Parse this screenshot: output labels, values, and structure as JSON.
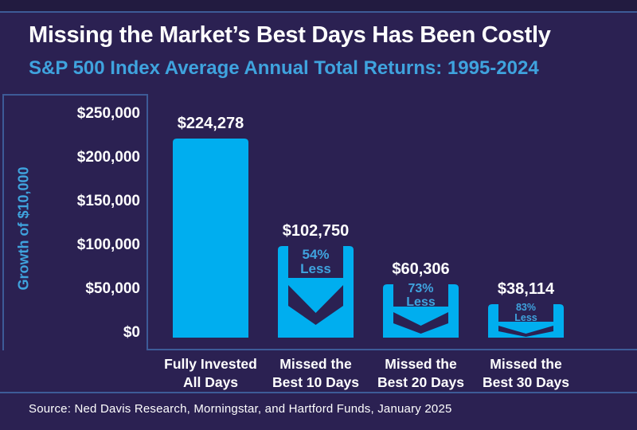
{
  "header": {
    "title": "Missing the Market’s Best Days Has Been Costly",
    "subtitle": "S&P 500 Index Average Annual Total Returns: 1995-2024"
  },
  "footer": {
    "source": "Source: Ned Davis Research, Morningstar, and Hartford Funds, January 2025"
  },
  "chart_data": {
    "type": "bar",
    "title": "Missing the Market’s Best Days Has Been Costly",
    "subtitle": "S&P 500 Index Average Annual Total Returns: 1995-2024",
    "ylabel": "Growth of $10,000",
    "xlabel": "",
    "ylim": [
      0,
      250000
    ],
    "yticks": [
      "$250,000",
      "$200,000",
      "$150,000",
      "$100,000",
      "$50,000",
      "$0"
    ],
    "categories": [
      [
        "Fully Invested",
        "All Days"
      ],
      [
        "Missed the",
        "Best 10 Days"
      ],
      [
        "Missed the",
        "Best 20 Days"
      ],
      [
        "Missed the",
        "Best 30 Days"
      ]
    ],
    "values": [
      224278,
      102750,
      60306,
      38114
    ],
    "value_labels": [
      "$224,278",
      "$102,750",
      "$60,306",
      "$38,114"
    ],
    "loss": [
      null,
      {
        "pct": "54%",
        "word": "Less"
      },
      {
        "pct": "73%",
        "word": "Less"
      },
      {
        "pct": "83%",
        "word": "Less"
      }
    ],
    "grid": false,
    "legend": "none",
    "colors": {
      "bar": "#00AEEF",
      "background": "#2B2152",
      "accent_text": "#3FA3DE",
      "frame_line": "#3D5B97",
      "top_band": "#221B40",
      "label_text": "#FFFFFF"
    }
  }
}
